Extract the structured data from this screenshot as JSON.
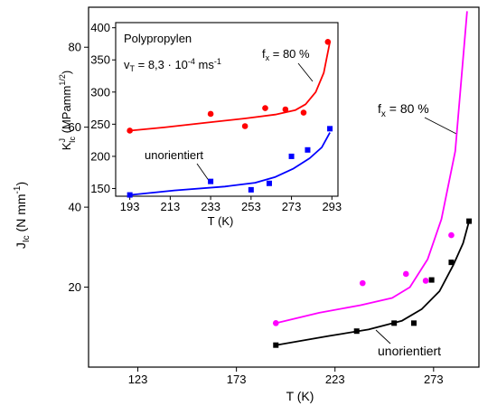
{
  "chart_data": [
    {
      "type": "scatter",
      "x_axis": {
        "label": "T (K)",
        "ticks": [
          123,
          173,
          223,
          273
        ],
        "lim": [
          98,
          296
        ]
      },
      "y_axis": {
        "label_main": "J",
        "label_sub": "Ic",
        "label_unit": " (N mm",
        "label_exp": "-1",
        "label_close": ")",
        "ticks": [
          20,
          40,
          60,
          80
        ],
        "lim": [
          0,
          90
        ]
      },
      "series": [
        {
          "name": "f_x = 80 %",
          "color": "#ff00ff",
          "marker": "circle",
          "points": [
            [
              193,
              11
            ],
            [
              237,
              21
            ],
            [
              259,
              23.3
            ],
            [
              269,
              21.6
            ],
            [
              282,
              33
            ]
          ],
          "fit": [
            [
              193,
              11
            ],
            [
              215,
              13.6
            ],
            [
              236,
              15.5
            ],
            [
              252,
              17.3
            ],
            [
              261,
              20
            ],
            [
              270,
              27
            ],
            [
              277,
              37
            ],
            [
              284,
              54
            ],
            [
              290,
              89
            ]
          ]
        },
        {
          "name": "unorientiert",
          "color": "#000000",
          "marker": "square",
          "points": [
            [
              193,
              5.5
            ],
            [
              234,
              9
            ],
            [
              253,
              11
            ],
            [
              263,
              11
            ],
            [
              272,
              21.8
            ],
            [
              282,
              26.2
            ],
            [
              291,
              36.5
            ]
          ],
          "fit": [
            [
              193,
              5.5
            ],
            [
              220,
              7.8
            ],
            [
              240,
              9.4
            ],
            [
              257,
              11.6
            ],
            [
              267,
              14.5
            ],
            [
              276,
              19
            ],
            [
              283,
              25.5
            ],
            [
              288,
              31
            ],
            [
              291,
              36.5
            ]
          ]
        }
      ],
      "annotations": [
        {
          "text_main": "f",
          "text_sub": "x",
          "text_rest": " = 80 %"
        },
        {
          "text": "unorientiert"
        }
      ]
    },
    {
      "type": "scatter",
      "title": "Polypropylen",
      "x_axis": {
        "label": "T (K)",
        "ticks": [
          193,
          213,
          233,
          253,
          273,
          293
        ],
        "lim": [
          186,
          296
        ]
      },
      "y_axis": {
        "label_main": "K",
        "label_sup": "J",
        "label_sub": "Ic",
        "label_unit": " (MPamm",
        "label_exp": "1/2",
        "label_close": ")",
        "ticks": [
          150,
          200,
          250,
          300,
          350,
          400
        ],
        "lim": [
          138,
          408
        ]
      },
      "series": [
        {
          "name": "f_x = 80 %",
          "color": "#ff0000",
          "marker": "circle",
          "points": [
            [
              193,
              240
            ],
            [
              233,
              266
            ],
            [
              250,
              247
            ],
            [
              260,
              275
            ],
            [
              270,
              273
            ],
            [
              279,
              268
            ],
            [
              291,
              378
            ]
          ],
          "fit": [
            [
              193,
              240
            ],
            [
              210,
              245
            ],
            [
              230,
              252
            ],
            [
              250,
              259
            ],
            [
              265,
              265
            ],
            [
              275,
              272
            ],
            [
              280,
              281
            ],
            [
              285,
              300
            ],
            [
              289,
              330
            ],
            [
              292,
              378
            ]
          ]
        },
        {
          "name": "unorientiert",
          "color": "#0000ff",
          "marker": "square",
          "points": [
            [
              193,
              140
            ],
            [
              233,
              161
            ],
            [
              253,
              148
            ],
            [
              262,
              158
            ],
            [
              273,
              200
            ],
            [
              281,
              210
            ],
            [
              292,
              243
            ]
          ],
          "fit": [
            [
              193,
              140
            ],
            [
              215,
              147
            ],
            [
              240,
              153
            ],
            [
              255,
              159
            ],
            [
              265,
              168
            ],
            [
              274,
              181
            ],
            [
              282,
              197
            ],
            [
              288,
              214
            ],
            [
              292,
              237
            ]
          ]
        }
      ],
      "annotations": [
        {
          "text_main": "v",
          "text_sub": "T",
          "text_rest": " = 8,3 · 10",
          "text_exp": "-4",
          "text_tail": " ms",
          "text_exp2": "-1"
        },
        {
          "text_main": "f",
          "text_sub": "x",
          "text_rest": " = 80 %"
        },
        {
          "text": "unorientiert"
        }
      ]
    }
  ]
}
